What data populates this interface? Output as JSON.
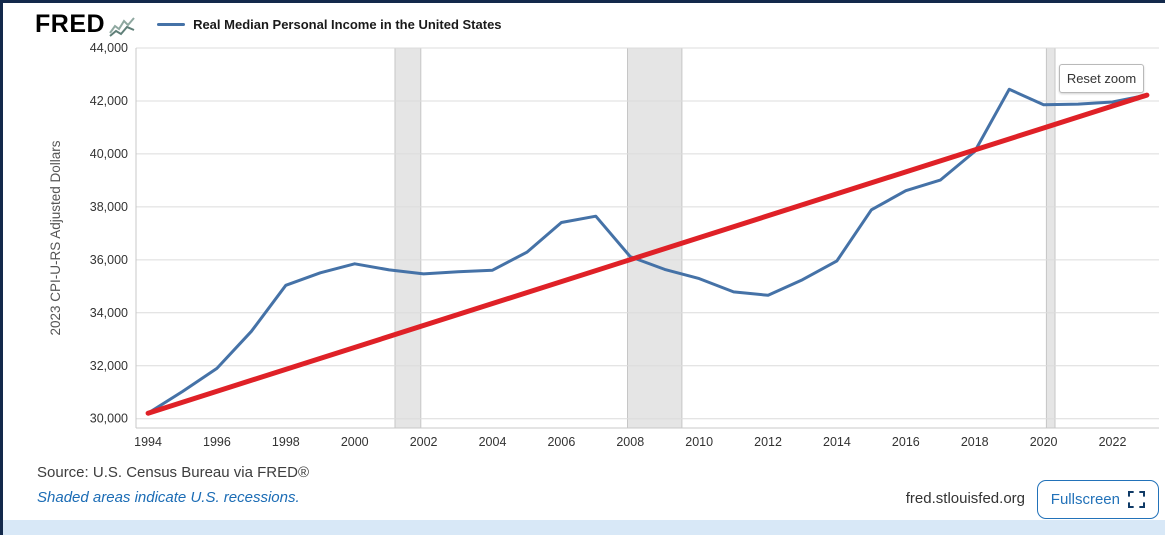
{
  "header": {
    "logo_text": "FRED",
    "legend": {
      "series_label": "Real Median Personal Income in the United States",
      "series_color": "#4572a7"
    }
  },
  "chart": {
    "reset_zoom_label": "Reset zoom",
    "y_axis_title": "2023 CPI-U-RS Adjusted Dollars"
  },
  "chart_data": {
    "type": "line",
    "title": "Real Median Personal Income in the United States",
    "xlabel": "",
    "ylabel": "2023 CPI-U-RS Adjusted Dollars",
    "xlim": [
      1993.65,
      2023.35
    ],
    "ylim": [
      29650,
      44000
    ],
    "x_ticks": [
      1994,
      1996,
      1998,
      2000,
      2002,
      2004,
      2006,
      2008,
      2010,
      2012,
      2014,
      2016,
      2018,
      2020,
      2022
    ],
    "y_ticks": [
      30000,
      32000,
      34000,
      36000,
      38000,
      40000,
      42000,
      44000
    ],
    "grid": "horizontal",
    "grid_color": "#dcdcdc",
    "axis_color": "#c8c8c8",
    "tick_label_color": "#333333",
    "band_color": "#e5e5e5",
    "band_edge_color": "#c6c6c6",
    "recession_bands": [
      [
        2001.17,
        2001.92
      ],
      [
        2007.92,
        2009.5
      ],
      [
        2020.08,
        2020.33
      ]
    ],
    "x": [
      1994,
      1995,
      1996,
      1997,
      1998,
      1999,
      2000,
      2001,
      2002,
      2003,
      2004,
      2005,
      2006,
      2007,
      2008,
      2009,
      2010,
      2011,
      2012,
      2013,
      2014,
      2015,
      2016,
      2017,
      2018,
      2019,
      2020,
      2021,
      2022,
      2023
    ],
    "series": [
      {
        "name": "Real Median Personal Income in the United States",
        "data_name": "income-series-line",
        "color": "#4572a7",
        "width": 3,
        "values": [
          30210,
          31030,
          31900,
          33300,
          35040,
          35510,
          35850,
          35620,
          35470,
          35550,
          35610,
          36290,
          37410,
          37650,
          36120,
          35640,
          35290,
          34790,
          34660,
          35250,
          35960,
          37890,
          38610,
          39010,
          40090,
          42440,
          41860,
          41880,
          41960,
          42220
        ]
      },
      {
        "name": "Linear trend line",
        "data_name": "trend-line",
        "color": "#df2127",
        "width": 5,
        "x": [
          1994,
          2023
        ],
        "values": [
          30210,
          42220
        ]
      }
    ],
    "legend_position": "top"
  },
  "footer": {
    "source": "Source: U.S. Census Bureau via FRED®",
    "recession_note": "Shaded areas indicate U.S. recessions.",
    "site": "fred.stlouisfed.org",
    "fullscreen_label": "Fullscreen"
  }
}
